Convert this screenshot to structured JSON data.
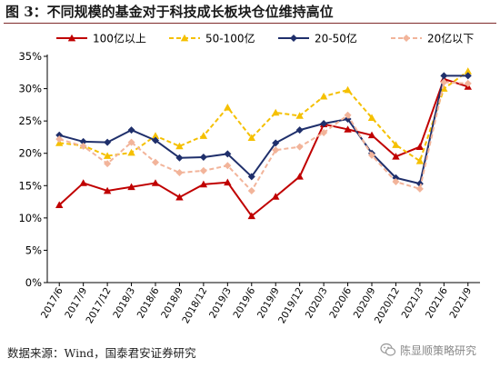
{
  "figure_title": "图 3：不同规模的基金对于科技成长板块仓位维持高位",
  "source_note": "数据来源：Wind，国泰君安证券研究",
  "watermark": {
    "text": "陈显顺策略研究",
    "icon": "wechat-icon"
  },
  "chart_data": {
    "type": "line",
    "title": "",
    "xlabel": "",
    "ylabel": "",
    "ylim": [
      0,
      35
    ],
    "yticks": [
      "0%",
      "5%",
      "10%",
      "15%",
      "20%",
      "25%",
      "30%",
      "35%"
    ],
    "grid": false,
    "legend_position": "top",
    "categories": [
      "2017/6",
      "2017/9",
      "2017/12",
      "2018/3",
      "2018/6",
      "2018/9",
      "2018/12",
      "2019/3",
      "2019/6",
      "2019/9",
      "2019/12",
      "2020/3",
      "2020/6",
      "2020/9",
      "2020/12",
      "2021/3",
      "2021/6",
      "2021/9"
    ],
    "series": [
      {
        "name": "100亿以上",
        "color": "#c00000",
        "dash": "solid",
        "marker": "triangle",
        "values": [
          12.0,
          15.4,
          14.2,
          14.8,
          15.4,
          13.2,
          15.2,
          15.5,
          10.3,
          13.3,
          16.4,
          24.5,
          23.7,
          22.8,
          19.5,
          21.0,
          31.5,
          30.3
        ]
      },
      {
        "name": "50-100亿",
        "color": "#f5c000",
        "dash": "dashed",
        "marker": "triangle",
        "values": [
          21.6,
          21.2,
          19.6,
          20.1,
          22.7,
          21.1,
          22.7,
          27.1,
          22.4,
          26.3,
          25.8,
          28.8,
          29.8,
          25.5,
          21.3,
          18.8,
          30.0,
          32.7
        ]
      },
      {
        "name": "20-50亿",
        "color": "#1f2f6b",
        "dash": "solid",
        "marker": "diamond",
        "values": [
          22.8,
          21.8,
          21.7,
          23.6,
          22.0,
          19.3,
          19.4,
          19.9,
          16.4,
          21.6,
          23.6,
          24.6,
          25.3,
          20.0,
          16.2,
          15.3,
          32.0,
          32.0
        ]
      },
      {
        "name": "20亿以下",
        "color": "#f2b49a",
        "dash": "dashed",
        "marker": "diamond",
        "values": [
          22.2,
          21.1,
          18.4,
          21.7,
          18.6,
          17.0,
          17.3,
          18.1,
          14.2,
          20.5,
          21.0,
          23.2,
          25.9,
          19.7,
          15.6,
          14.5,
          31.0,
          30.8
        ]
      }
    ]
  }
}
